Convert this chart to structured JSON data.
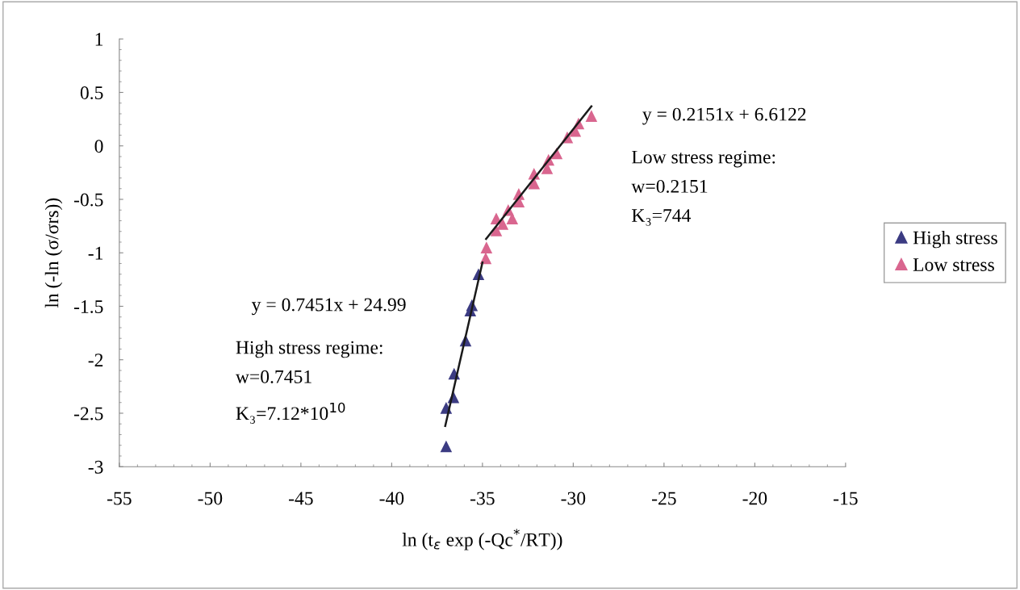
{
  "chart_data": {
    "type": "scatter",
    "xlabel": "ln (t$_{ε}$ exp (-Qc$^{*}$/RT))",
    "ylabel": "ln (-ln (σ/σrs))",
    "xlim": [
      -55,
      -15
    ],
    "xticks": [
      -55,
      -50,
      -45,
      -40,
      -35,
      -30,
      -25,
      -20,
      -15
    ],
    "ylim": [
      -3,
      1
    ],
    "yticks": [
      -3,
      -2.5,
      -2,
      -1.5,
      -1,
      -0.5,
      0,
      0.5,
      1
    ],
    "grid": false,
    "legend": "right",
    "series": [
      {
        "name": "High stress",
        "marker": "triangle",
        "color": "#3b3b82",
        "x": [
          -35.22,
          -35.58,
          -35.67,
          -35.93,
          -36.56,
          -36.6,
          -37.0,
          -37.0
        ],
        "values": [
          -1.2,
          -1.49,
          -1.54,
          -1.82,
          -2.13,
          -2.35,
          -2.45,
          -2.81
        ]
      },
      {
        "name": "Low stress",
        "marker": "triangle",
        "color": "#d9668f",
        "x": [
          -29.0,
          -29.71,
          -29.89,
          -30.33,
          -30.91,
          -31.36,
          -31.44,
          -32.16,
          -32.16,
          -33.0,
          -33.0,
          -33.58,
          -33.36,
          -34.24,
          -33.89,
          -34.24,
          -34.78,
          -34.82
        ],
        "values": [
          0.28,
          0.21,
          0.14,
          0.08,
          -0.07,
          -0.13,
          -0.21,
          -0.26,
          -0.35,
          -0.45,
          -0.52,
          -0.6,
          -0.68,
          -0.68,
          -0.73,
          -0.79,
          -0.95,
          -1.05
        ]
      },
      {
        "type": "line",
        "marker": "none",
        "color": "#1a1a1a",
        "x": [
          -37.05,
          -35.0
        ],
        "values": [
          -2.62,
          -1.09
        ]
      },
      {
        "type": "line",
        "marker": "none",
        "color": "#1a1a1a",
        "x": [
          -34.8,
          -29.0
        ],
        "values": [
          -0.87,
          0.37
        ]
      }
    ],
    "annotations": [
      "y = 0.2151x + 6.6122",
      "Low stress regime:\nw=0.2151\nK₃=744",
      "y = 0.7451x + 24.99",
      "High stress regime:\nw=0.7451\nK₃=7.12*10$^{10}$"
    ]
  }
}
